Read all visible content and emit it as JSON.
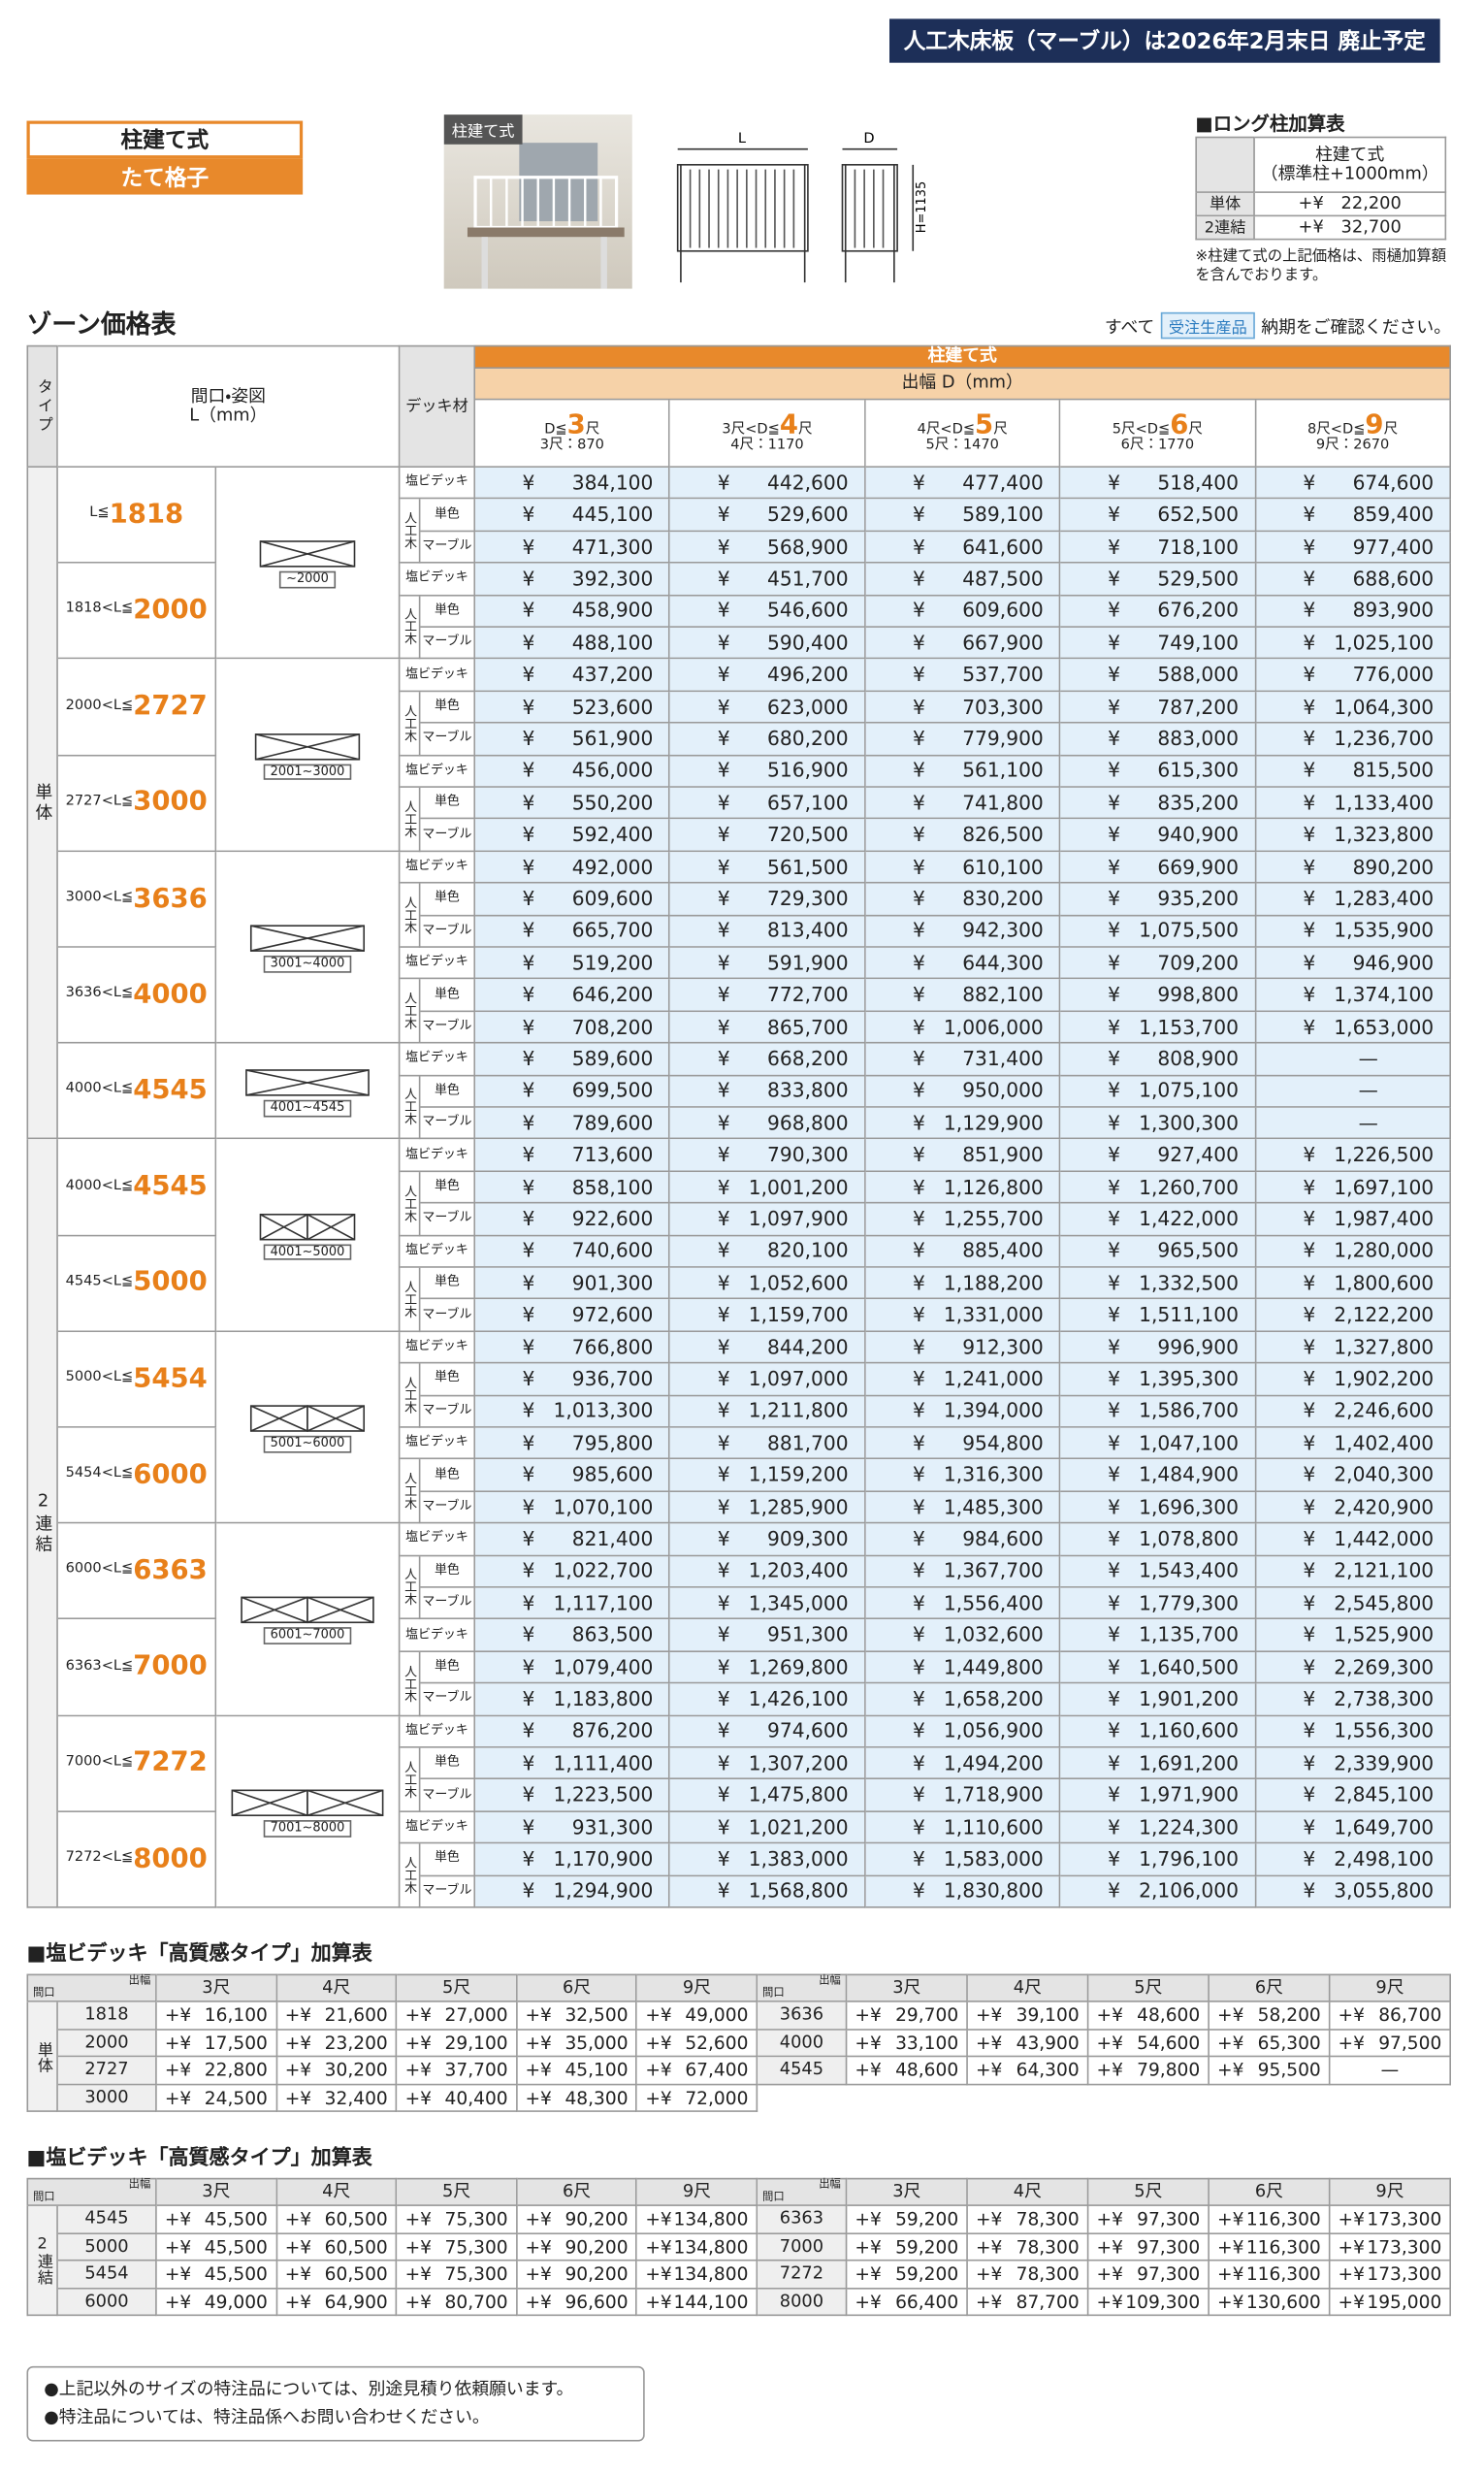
{
  "banner": "人工木床板（マーブル）は2026年2月末日 廃止予定",
  "product": {
    "style": "柱建て式",
    "infill": "たて格子"
  },
  "diagram": {
    "photo_label": "柱建て式",
    "L": "L",
    "D": "D",
    "H": "H=1135"
  },
  "long_post": {
    "title": "■ロング柱加算表",
    "header_1": "柱建て式",
    "header_2": "（標準柱+1000mm）",
    "rows": [
      {
        "label": "単体",
        "value": "+¥　22,200"
      },
      {
        "label": "2連結",
        "value": "+¥　32,700"
      }
    ],
    "note": "※柱建て式の上記価格は、雨樋加算額を含んでおります。"
  },
  "zone": {
    "title": "ゾーン価格表",
    "note_pre": "すべて",
    "note_badge": "受注生産品",
    "note_post": "納期をご確認ください。"
  },
  "zone_table": {
    "header": {
      "type": "タイプ",
      "frontage": "間口・姿図",
      "l_unit": "L（mm）",
      "deck": "デッキ材",
      "style": "柱建て式",
      "depth": "出幅 D（mm）"
    },
    "columns": [
      {
        "pre": "D≦",
        "big": "3",
        "suf": "尺",
        "sub": "3尺：870"
      },
      {
        "pre": "3尺<D≦",
        "big": "4",
        "suf": "尺",
        "sub": "4尺：1170"
      },
      {
        "pre": "4尺<D≦",
        "big": "5",
        "suf": "尺",
        "sub": "5尺：1470"
      },
      {
        "pre": "5尺<D≦",
        "big": "6",
        "suf": "尺",
        "sub": "6尺：1770"
      },
      {
        "pre": "8尺<D≦",
        "big": "9",
        "suf": "尺",
        "sub": "9尺：2670"
      }
    ],
    "deck": {
      "pvc": "塩ビデッキ",
      "wood": "人工木",
      "solid": "単色",
      "marble": "マーブル"
    },
    "yen": "¥",
    "groups": [
      {
        "type": "単体",
        "spans": [
          {
            "size": "~2000",
            "ranges": [
              {
                "pre": "L≦",
                "big": "1818",
                "prices": [
                  [
                    "384,100",
                    "442,600",
                    "477,400",
                    "518,400",
                    "674,600"
                  ],
                  [
                    "445,100",
                    "529,600",
                    "589,100",
                    "652,500",
                    "859,400"
                  ],
                  [
                    "471,300",
                    "568,900",
                    "641,600",
                    "718,100",
                    "977,400"
                  ]
                ]
              },
              {
                "pre": "1818<L≦",
                "big": "2000",
                "prices": [
                  [
                    "392,300",
                    "451,700",
                    "487,500",
                    "529,500",
                    "688,600"
                  ],
                  [
                    "458,900",
                    "546,600",
                    "609,600",
                    "676,200",
                    "893,900"
                  ],
                  [
                    "488,100",
                    "590,400",
                    "667,900",
                    "749,100",
                    "1,025,100"
                  ]
                ]
              }
            ]
          },
          {
            "size": "2001~3000",
            "ranges": [
              {
                "pre": "2000<L≦",
                "big": "2727",
                "prices": [
                  [
                    "437,200",
                    "496,200",
                    "537,700",
                    "588,000",
                    "776,000"
                  ],
                  [
                    "523,600",
                    "623,000",
                    "703,300",
                    "787,200",
                    "1,064,300"
                  ],
                  [
                    "561,900",
                    "680,200",
                    "779,900",
                    "883,000",
                    "1,236,700"
                  ]
                ]
              },
              {
                "pre": "2727<L≦",
                "big": "3000",
                "prices": [
                  [
                    "456,000",
                    "516,900",
                    "561,100",
                    "615,300",
                    "815,500"
                  ],
                  [
                    "550,200",
                    "657,100",
                    "741,800",
                    "835,200",
                    "1,133,400"
                  ],
                  [
                    "592,400",
                    "720,500",
                    "826,500",
                    "940,900",
                    "1,323,800"
                  ]
                ]
              }
            ]
          },
          {
            "size": "3001~4000",
            "ranges": [
              {
                "pre": "3000<L≦",
                "big": "3636",
                "prices": [
                  [
                    "492,000",
                    "561,500",
                    "610,100",
                    "669,900",
                    "890,200"
                  ],
                  [
                    "609,600",
                    "729,300",
                    "830,200",
                    "935,200",
                    "1,283,400"
                  ],
                  [
                    "665,700",
                    "813,400",
                    "942,300",
                    "1,075,500",
                    "1,535,900"
                  ]
                ]
              },
              {
                "pre": "3636<L≦",
                "big": "4000",
                "prices": [
                  [
                    "519,200",
                    "591,900",
                    "644,300",
                    "709,200",
                    "946,900"
                  ],
                  [
                    "646,200",
                    "772,700",
                    "882,100",
                    "998,800",
                    "1,374,100"
                  ],
                  [
                    "708,200",
                    "865,700",
                    "1,006,000",
                    "1,153,700",
                    "1,653,000"
                  ]
                ]
              }
            ]
          },
          {
            "size": "4001~4545",
            "ranges": [
              {
                "pre": "4000<L≦",
                "big": "4545",
                "prices": [
                  [
                    "589,600",
                    "668,200",
                    "731,400",
                    "808,900",
                    "—"
                  ],
                  [
                    "699,500",
                    "833,800",
                    "950,000",
                    "1,075,100",
                    "—"
                  ],
                  [
                    "789,600",
                    "968,800",
                    "1,129,900",
                    "1,300,300",
                    "—"
                  ]
                ]
              }
            ]
          }
        ]
      },
      {
        "type": "2連結",
        "spans": [
          {
            "size": "4001~5000",
            "ranges": [
              {
                "pre": "4000<L≦",
                "big": "4545",
                "prices": [
                  [
                    "713,600",
                    "790,300",
                    "851,900",
                    "927,400",
                    "1,226,500"
                  ],
                  [
                    "858,100",
                    "1,001,200",
                    "1,126,800",
                    "1,260,700",
                    "1,697,100"
                  ],
                  [
                    "922,600",
                    "1,097,900",
                    "1,255,700",
                    "1,422,000",
                    "1,987,400"
                  ]
                ]
              },
              {
                "pre": "4545<L≦",
                "big": "5000",
                "prices": [
                  [
                    "740,600",
                    "820,100",
                    "885,400",
                    "965,500",
                    "1,280,000"
                  ],
                  [
                    "901,300",
                    "1,052,600",
                    "1,188,200",
                    "1,332,500",
                    "1,800,600"
                  ],
                  [
                    "972,600",
                    "1,159,700",
                    "1,331,000",
                    "1,511,100",
                    "2,122,200"
                  ]
                ]
              }
            ]
          },
          {
            "size": "5001~6000",
            "ranges": [
              {
                "pre": "5000<L≦",
                "big": "5454",
                "prices": [
                  [
                    "766,800",
                    "844,200",
                    "912,300",
                    "996,900",
                    "1,327,800"
                  ],
                  [
                    "936,700",
                    "1,097,000",
                    "1,241,000",
                    "1,395,300",
                    "1,902,200"
                  ],
                  [
                    "1,013,300",
                    "1,211,800",
                    "1,394,000",
                    "1,586,700",
                    "2,246,600"
                  ]
                ]
              },
              {
                "pre": "5454<L≦",
                "big": "6000",
                "prices": [
                  [
                    "795,800",
                    "881,700",
                    "954,800",
                    "1,047,100",
                    "1,402,400"
                  ],
                  [
                    "985,600",
                    "1,159,200",
                    "1,316,300",
                    "1,484,900",
                    "2,040,300"
                  ],
                  [
                    "1,070,100",
                    "1,285,900",
                    "1,485,300",
                    "1,696,300",
                    "2,420,900"
                  ]
                ]
              }
            ]
          },
          {
            "size": "6001~7000",
            "ranges": [
              {
                "pre": "6000<L≦",
                "big": "6363",
                "prices": [
                  [
                    "821,400",
                    "909,300",
                    "984,600",
                    "1,078,800",
                    "1,442,000"
                  ],
                  [
                    "1,022,700",
                    "1,203,400",
                    "1,367,700",
                    "1,543,400",
                    "2,121,100"
                  ],
                  [
                    "1,117,100",
                    "1,345,000",
                    "1,556,400",
                    "1,779,300",
                    "2,545,800"
                  ]
                ]
              },
              {
                "pre": "6363<L≦",
                "big": "7000",
                "prices": [
                  [
                    "863,500",
                    "951,300",
                    "1,032,600",
                    "1,135,700",
                    "1,525,900"
                  ],
                  [
                    "1,079,400",
                    "1,269,800",
                    "1,449,800",
                    "1,640,500",
                    "2,269,300"
                  ],
                  [
                    "1,183,800",
                    "1,426,100",
                    "1,658,200",
                    "1,901,200",
                    "2,738,300"
                  ]
                ]
              }
            ]
          },
          {
            "size": "7001~8000",
            "ranges": [
              {
                "pre": "7000<L≦",
                "big": "7272",
                "prices": [
                  [
                    "876,200",
                    "974,600",
                    "1,056,900",
                    "1,160,600",
                    "1,556,300"
                  ],
                  [
                    "1,111,400",
                    "1,307,200",
                    "1,494,200",
                    "1,691,200",
                    "2,339,900"
                  ],
                  [
                    "1,223,500",
                    "1,475,800",
                    "1,718,900",
                    "1,971,900",
                    "2,845,100"
                  ]
                ]
              },
              {
                "pre": "7272<L≦",
                "big": "8000",
                "prices": [
                  [
                    "931,300",
                    "1,021,200",
                    "1,110,600",
                    "1,224,300",
                    "1,649,700"
                  ],
                  [
                    "1,170,900",
                    "1,383,000",
                    "1,583,000",
                    "1,796,100",
                    "2,498,100"
                  ],
                  [
                    "1,294,900",
                    "1,568,800",
                    "1,830,800",
                    "2,106,000",
                    "3,055,800"
                  ]
                ]
              }
            ]
          }
        ]
      }
    ]
  },
  "addon_tables": [
    {
      "title": "■塩ビデッキ「高質感タイプ」加算表",
      "corner_top": "出幅",
      "corner_bottom": "間口",
      "type": "単体",
      "columns": [
        "3尺",
        "4尺",
        "5尺",
        "6尺",
        "9尺"
      ],
      "prefix": "+¥",
      "left": [
        {
          "size": "1818",
          "values": [
            "16,100",
            "21,600",
            "27,000",
            "32,500",
            "49,000"
          ]
        },
        {
          "size": "2000",
          "values": [
            "17,500",
            "23,200",
            "29,100",
            "35,000",
            "52,600"
          ]
        },
        {
          "size": "2727",
          "values": [
            "22,800",
            "30,200",
            "37,700",
            "45,100",
            "67,400"
          ]
        },
        {
          "size": "3000",
          "values": [
            "24,500",
            "32,400",
            "40,400",
            "48,300",
            "72,000"
          ]
        }
      ],
      "right": [
        {
          "size": "3636",
          "values": [
            "29,700",
            "39,100",
            "48,600",
            "58,200",
            "86,700"
          ]
        },
        {
          "size": "4000",
          "values": [
            "33,100",
            "43,900",
            "54,600",
            "65,300",
            "97,500"
          ]
        },
        {
          "size": "4545",
          "values": [
            "48,600",
            "64,300",
            "79,800",
            "95,500",
            "—"
          ]
        }
      ]
    },
    {
      "title": "■塩ビデッキ「高質感タイプ」加算表",
      "corner_top": "出幅",
      "corner_bottom": "間口",
      "type": "2連結",
      "columns": [
        "3尺",
        "4尺",
        "5尺",
        "6尺",
        "9尺"
      ],
      "prefix": "+¥",
      "left": [
        {
          "size": "4545",
          "values": [
            "45,500",
            "60,500",
            "75,300",
            "90,200",
            "134,800"
          ]
        },
        {
          "size": "5000",
          "values": [
            "45,500",
            "60,500",
            "75,300",
            "90,200",
            "134,800"
          ]
        },
        {
          "size": "5454",
          "values": [
            "45,500",
            "60,500",
            "75,300",
            "90,200",
            "134,800"
          ]
        },
        {
          "size": "6000",
          "values": [
            "49,000",
            "64,900",
            "80,700",
            "96,600",
            "144,100"
          ]
        }
      ],
      "right": [
        {
          "size": "6363",
          "values": [
            "59,200",
            "78,300",
            "97,300",
            "116,300",
            "173,300"
          ]
        },
        {
          "size": "7000",
          "values": [
            "59,200",
            "78,300",
            "97,300",
            "116,300",
            "173,300"
          ]
        },
        {
          "size": "7272",
          "values": [
            "59,200",
            "78,300",
            "97,300",
            "116,300",
            "173,300"
          ]
        },
        {
          "size": "8000",
          "values": [
            "66,400",
            "87,700",
            "109,300",
            "130,600",
            "195,000"
          ]
        }
      ]
    }
  ],
  "footnotes": [
    "●上記以外のサイズの特注品については、別途見積り依頼願います。",
    "●特注品については、特注品係へお問い合わせください。"
  ]
}
